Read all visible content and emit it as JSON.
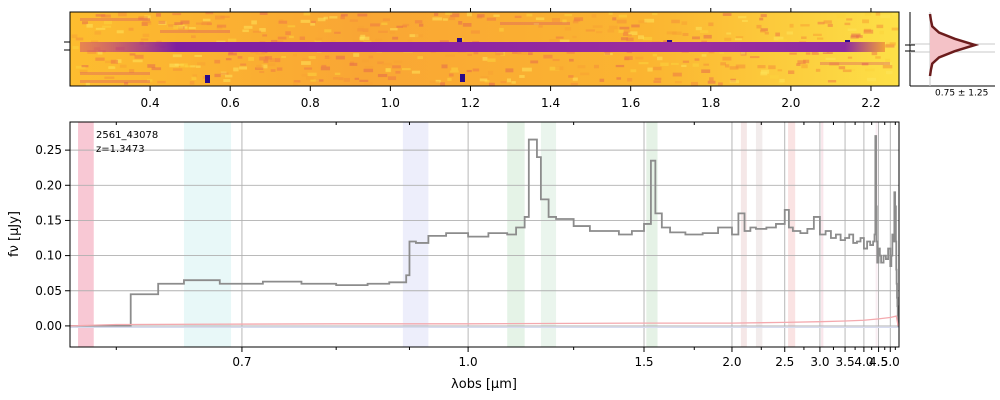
{
  "chart_data": [
    {
      "type": "heatmap",
      "x_ticks": [
        0.4,
        0.6,
        0.8,
        1.0,
        1.2,
        1.4,
        1.6,
        1.8,
        2.0,
        2.2
      ],
      "x_tick_labels": [
        "0.4",
        "0.6",
        "0.8",
        "1.0",
        "1.2",
        "1.4",
        "1.6",
        "1.8",
        "2.0",
        "2.2"
      ],
      "xlim": [
        0.2,
        2.27
      ],
      "colormap": "plasma_r",
      "trace_center_fraction": 0.48
    },
    {
      "type": "line",
      "annotation": "0.75 ± 1.25",
      "profile_y": [
        0.0,
        0.02,
        0.05,
        0.2,
        0.55,
        1.0,
        0.55,
        0.2,
        0.05,
        0.02,
        0.0
      ],
      "fill_color": "#f4c2c7",
      "line_color": "#6b1c1c"
    },
    {
      "type": "line",
      "title_lines": [
        "2561_43078",
        "z=1.3473"
      ],
      "xlabel": "λobs [µm]",
      "ylabel": "fν [µJy]",
      "xlim": [
        0.57,
        5.45
      ],
      "ylim": [
        -0.03,
        0.29
      ],
      "x_scale": "reciprocal",
      "y_ticks": [
        0.0,
        0.05,
        0.1,
        0.15,
        0.2,
        0.25
      ],
      "y_tick_labels": [
        "0.00",
        "0.05",
        "0.10",
        "0.15",
        "0.20",
        "0.25"
      ],
      "x_ticks": [
        0.7,
        1.0,
        1.5,
        2.0,
        2.5,
        3.0,
        3.5,
        4.0,
        4.5,
        5.0
      ],
      "x_tick_labels": [
        "0.7",
        "1.0",
        "1.5",
        "2.0",
        "2.5",
        "3.0",
        "3.5",
        "4.0",
        "4.5",
        "5.0"
      ],
      "grid": true,
      "bands": [
        {
          "x0": 0.575,
          "x1": 0.585,
          "color": "#f29bb0"
        },
        {
          "x0": 0.65,
          "x1": 0.69,
          "color": "#d5f3f2"
        },
        {
          "x0": 0.89,
          "x1": 0.93,
          "color": "#dfe0f7"
        },
        {
          "x0": 1.08,
          "x1": 1.12,
          "color": "#cfe9d4"
        },
        {
          "x0": 1.16,
          "x1": 1.2,
          "color": "#d9ecdf"
        },
        {
          "x0": 1.51,
          "x1": 1.56,
          "color": "#cfe7d2"
        },
        {
          "x0": 2.07,
          "x1": 2.12,
          "color": "#ecd4d4"
        },
        {
          "x0": 2.2,
          "x1": 2.26,
          "color": "#e8dcdc"
        },
        {
          "x0": 2.54,
          "x1": 2.63,
          "color": "#f6cccc"
        },
        {
          "x0": 3.02,
          "x1": 3.06,
          "color": "#f6d2da"
        },
        {
          "x0": 4.39,
          "x1": 4.45,
          "color": "#f6e0ea"
        }
      ],
      "series": [
        {
          "color": "#8c8c8c",
          "x": [
            0.57,
            0.6,
            0.61,
            0.63,
            0.65,
            0.68,
            0.72,
            0.76,
            0.8,
            0.84,
            0.87,
            0.895,
            0.9,
            0.91,
            0.93,
            0.96,
            1.0,
            1.04,
            1.08,
            1.1,
            1.12,
            1.13,
            1.15,
            1.16,
            1.18,
            1.2,
            1.25,
            1.3,
            1.4,
            1.45,
            1.5,
            1.53,
            1.55,
            1.58,
            1.62,
            1.7,
            1.8,
            1.9,
            2.0,
            2.05,
            2.1,
            2.15,
            2.2,
            2.3,
            2.4,
            2.5,
            2.55,
            2.6,
            2.7,
            2.8,
            2.9,
            3.0,
            3.1,
            3.2,
            3.3,
            3.4,
            3.5,
            3.6,
            3.7,
            3.8,
            3.9,
            4.0,
            4.1,
            4.2,
            4.3,
            4.35,
            4.38,
            4.41,
            4.43,
            4.45,
            4.5,
            4.55,
            4.6,
            4.7,
            4.8,
            4.9,
            5.0,
            5.05,
            5.1,
            5.15,
            5.2,
            5.24,
            5.28,
            5.3,
            5.32,
            5.34,
            5.36,
            5.38,
            5.4,
            5.45
          ],
          "y": [
            0.0,
            0.0,
            0.045,
            0.06,
            0.065,
            0.06,
            0.063,
            0.06,
            0.058,
            0.06,
            0.062,
            0.072,
            0.12,
            0.118,
            0.128,
            0.132,
            0.127,
            0.132,
            0.13,
            0.14,
            0.155,
            0.265,
            0.24,
            0.18,
            0.155,
            0.152,
            0.142,
            0.135,
            0.13,
            0.135,
            0.145,
            0.235,
            0.16,
            0.14,
            0.133,
            0.13,
            0.132,
            0.14,
            0.13,
            0.16,
            0.135,
            0.14,
            0.138,
            0.14,
            0.145,
            0.165,
            0.14,
            0.135,
            0.132,
            0.138,
            0.155,
            0.13,
            0.135,
            0.125,
            0.13,
            0.122,
            0.125,
            0.13,
            0.118,
            0.12,
            0.125,
            0.11,
            0.12,
            0.115,
            0.12,
            0.13,
            0.27,
            0.17,
            0.12,
            0.09,
            0.11,
            0.1,
            0.09,
            0.1,
            0.095,
            0.11,
            0.085,
            0.1,
            0.13,
            0.12,
            0.19,
            0.17,
            0.12,
            0.08,
            0.06,
            0.04,
            0.028,
            0.015,
            0.0,
            0.0
          ]
        },
        {
          "color": "#f4a9ae",
          "x": [
            0.57,
            0.6,
            0.8,
            1.0,
            1.5,
            2.0,
            2.5,
            3.0,
            3.5,
            4.0,
            4.5,
            5.0,
            5.3,
            5.4
          ],
          "y": [
            0.0,
            0.002,
            0.003,
            0.003,
            0.004,
            0.004,
            0.005,
            0.006,
            0.007,
            0.008,
            0.01,
            0.012,
            0.014,
            0.0
          ]
        },
        {
          "color": "#d7dbef",
          "x": [
            0.57,
            5.45
          ],
          "y": [
            -0.002,
            -0.002
          ]
        }
      ]
    }
  ]
}
